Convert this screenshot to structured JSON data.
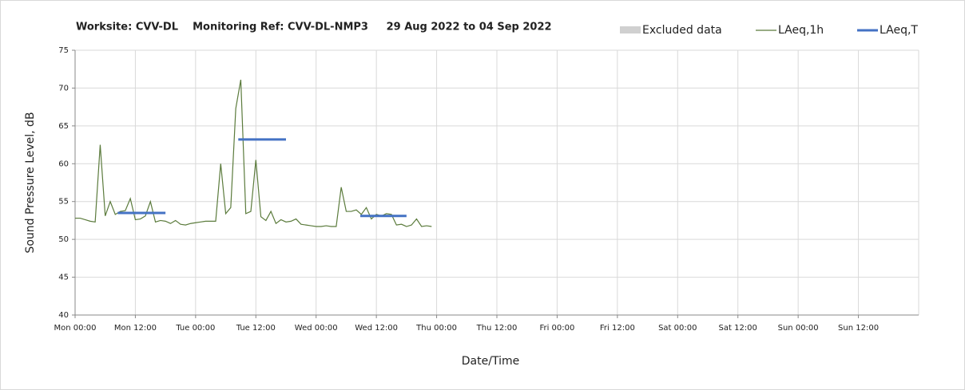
{
  "chart_data": {
    "type": "line",
    "title": "Worksite: CVV-DL    Monitoring Ref: CVV-DL-NMP3     29 Aug 2022 to 04 Sep 2022",
    "x_label": "Date/Time",
    "y_label": "Sound Pressure Level, dB",
    "xlim": [
      0,
      168
    ],
    "xticks": [
      {
        "value": 0,
        "label": "Mon 00:00"
      },
      {
        "value": 12,
        "label": "Mon 12:00"
      },
      {
        "value": 24,
        "label": "Tue 00:00"
      },
      {
        "value": 36,
        "label": "Tue 12:00"
      },
      {
        "value": 48,
        "label": "Wed 00:00"
      },
      {
        "value": 60,
        "label": "Wed 12:00"
      },
      {
        "value": 72,
        "label": "Thu 00:00"
      },
      {
        "value": 84,
        "label": "Thu 12:00"
      },
      {
        "value": 96,
        "label": "Fri 00:00"
      },
      {
        "value": 108,
        "label": "Fri 12:00"
      },
      {
        "value": 120,
        "label": "Sat 00:00"
      },
      {
        "value": 132,
        "label": "Sat 12:00"
      },
      {
        "value": 144,
        "label": "Sun 00:00"
      },
      {
        "value": 156,
        "label": "Sun 12:00"
      }
    ],
    "ylim": [
      40,
      75
    ],
    "yticks": [
      40,
      45,
      50,
      55,
      60,
      65,
      70,
      75
    ],
    "grid": true,
    "legend": "top-right",
    "series": [
      {
        "name": "Excluded data",
        "color": "#d0d0d0",
        "style": "area",
        "x": [],
        "values": []
      },
      {
        "name": "LAeq,1h",
        "color": "#5b7b3c",
        "style": "thin",
        "width": 1.2,
        "x": [
          0,
          1,
          2,
          3,
          4,
          5,
          6,
          7,
          8,
          9,
          10,
          11,
          12,
          13,
          14,
          15,
          16,
          17,
          18,
          19,
          20,
          21,
          22,
          23,
          24,
          25,
          26,
          27,
          28,
          29,
          30,
          31,
          32,
          33,
          34,
          35,
          36,
          37,
          38,
          39,
          40,
          41,
          42,
          43,
          44,
          45,
          46,
          47,
          48,
          49,
          50,
          51,
          52,
          53,
          54,
          55,
          56,
          57,
          58,
          59,
          60,
          61,
          62,
          63,
          64,
          65,
          66,
          67,
          68,
          69,
          70,
          71
        ],
        "values": [
          52.8,
          52.8,
          52.6,
          52.4,
          52.3,
          62.5,
          53.1,
          55,
          53.3,
          53.7,
          53.8,
          55.4,
          52.6,
          52.7,
          53.1,
          55,
          52.3,
          52.5,
          52.4,
          52.1,
          52.5,
          52,
          51.9,
          52.1,
          52.2,
          52.3,
          52.4,
          52.4,
          52.4,
          60,
          53.4,
          54.2,
          67.3,
          71.1,
          53.4,
          53.7,
          60.5,
          53,
          52.5,
          53.7,
          52.1,
          52.6,
          52.3,
          52.4,
          52.7,
          52,
          51.9,
          51.8,
          51.7,
          51.7,
          51.8,
          51.7,
          51.7,
          56.9,
          53.7,
          53.7,
          53.9,
          53.3,
          54.2,
          52.7,
          53.3,
          53.1,
          53.4,
          53.3,
          51.9,
          52,
          51.7,
          51.9,
          52.7,
          51.7,
          51.8,
          51.7
        ]
      },
      {
        "name": "LAeq,T",
        "color": "#4472c4",
        "style": "thick",
        "width": 3,
        "x": [
          8.5,
          18,
          null,
          32.5,
          42,
          null,
          56.8,
          66
        ],
        "values": [
          53.5,
          53.5,
          null,
          63.2,
          63.2,
          null,
          53.1,
          53.1
        ]
      }
    ]
  }
}
